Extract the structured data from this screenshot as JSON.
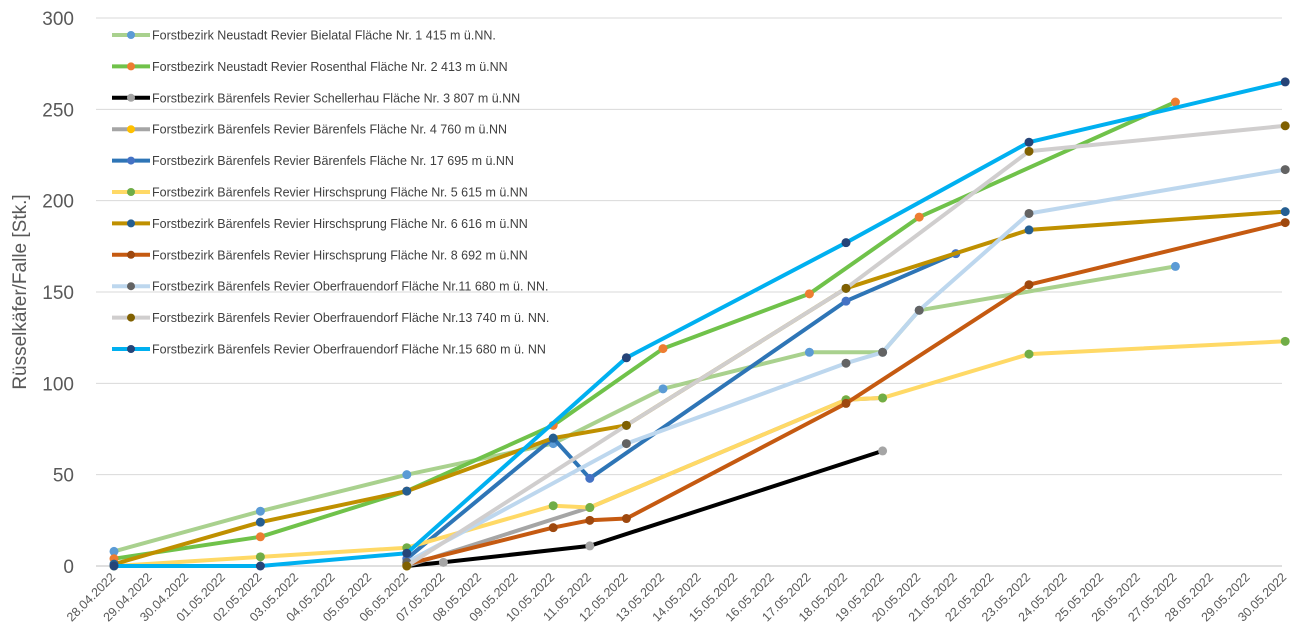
{
  "chart_data": {
    "type": "line",
    "title": "",
    "xlabel": "",
    "ylabel": "Rüsselkäfer/Falle [Stk.]",
    "ylim": [
      0,
      300
    ],
    "yticks": [
      0,
      50,
      100,
      150,
      200,
      250,
      300
    ],
    "grid": "horizontal",
    "legend_position": "top-left",
    "categories": [
      "28.04.2022",
      "29.04.2022",
      "30.04.2022",
      "01.05.2022",
      "02.05.2022",
      "03.05.2022",
      "04.05.2022",
      "05.05.2022",
      "06.05.2022",
      "07.05.2022",
      "08.05.2022",
      "09.05.2022",
      "10.05.2022",
      "11.05.2022",
      "12.05.2022",
      "13.05.2022",
      "14.05.2022",
      "15.05.2022",
      "16.05.2022",
      "17.05.2022",
      "18.05.2022",
      "19.05.2022",
      "20.05.2022",
      "21.05.2022",
      "22.05.2022",
      "23.05.2022",
      "24.05.2022",
      "25.05.2022",
      "26.05.2022",
      "27.05.2022",
      "28.05.2022",
      "29.05.2022",
      "30.05.2022"
    ],
    "series": [
      {
        "name": "Forstbezirk Neustadt Revier Bielatal Fläche Nr. 1 415 m ü.NN.",
        "color": "#a9d18e",
        "marker": "#5b9bd5",
        "points": [
          [
            0,
            8
          ],
          [
            4,
            30
          ],
          [
            8,
            50
          ],
          [
            12,
            67
          ],
          [
            15,
            97
          ],
          [
            19,
            117
          ],
          [
            21,
            117
          ],
          [
            22,
            140
          ],
          [
            29,
            164
          ]
        ]
      },
      {
        "name": "Forstbezirk Neustadt Revier Rosenthal Fläche Nr. 2 413 m ü.NN",
        "color": "#70c24a",
        "marker": "#ed7d31",
        "points": [
          [
            0,
            4
          ],
          [
            4,
            16
          ],
          [
            8,
            41
          ],
          [
            12,
            77
          ],
          [
            15,
            119
          ],
          [
            19,
            149
          ],
          [
            22,
            191
          ],
          [
            29,
            254
          ]
        ]
      },
      {
        "name": "Forstbezirk Bärenfels Revier Schellerhau Fläche Nr. 3 807 m ü.NN",
        "color": "#000000",
        "marker": "#a5a5a5",
        "points": [
          [
            8,
            0
          ],
          [
            9,
            2
          ],
          [
            13,
            11
          ],
          [
            21,
            63
          ]
        ]
      },
      {
        "name": "Forstbezirk Bärenfels Revier Bärenfels Fläche Nr. 4 760 m ü.NN",
        "color": "#a5a5a5",
        "marker": "#ffc000",
        "points": [
          [
            8,
            0
          ],
          [
            13,
            32
          ],
          [
            20,
            91
          ],
          [
            21,
            92
          ]
        ]
      },
      {
        "name": "Forstbezirk Bärenfels Revier Bärenfels Fläche Nr. 17 695  m ü.NN",
        "color": "#2e75b6",
        "marker": "#4472c4",
        "points": [
          [
            8,
            4
          ],
          [
            12,
            70
          ],
          [
            13,
            48
          ],
          [
            20,
            145
          ],
          [
            23,
            171
          ]
        ]
      },
      {
        "name": "Forstbezirk Bärenfels Revier Hirschsprung Fläche Nr. 5 615 m ü.NN",
        "color": "#ffd966",
        "marker": "#70ad47",
        "points": [
          [
            0,
            0
          ],
          [
            4,
            5
          ],
          [
            8,
            10
          ],
          [
            12,
            33
          ],
          [
            13,
            32
          ],
          [
            20,
            91
          ],
          [
            21,
            92
          ],
          [
            25,
            116
          ],
          [
            32,
            123
          ]
        ]
      },
      {
        "name": "Forstbezirk Bärenfels Revier Hirschsprung Fläche Nr. 6 616 m ü.NN",
        "color": "#bf9000",
        "marker": "#255e91",
        "points": [
          [
            0,
            1
          ],
          [
            4,
            24
          ],
          [
            8,
            41
          ],
          [
            12,
            70
          ],
          [
            14,
            77
          ],
          [
            20,
            152
          ],
          [
            25,
            184
          ],
          [
            32,
            194
          ]
        ]
      },
      {
        "name": "Forstbezirk Bärenfels Revier Hirschsprung Fläche Nr. 8 692 m ü.NN",
        "color": "#c55a11",
        "marker": "#9e480e",
        "points": [
          [
            8,
            1
          ],
          [
            12,
            21
          ],
          [
            13,
            25
          ],
          [
            14,
            26
          ],
          [
            20,
            89
          ],
          [
            25,
            154
          ],
          [
            32,
            188
          ]
        ]
      },
      {
        "name": "Forstbezirk Bärenfels Revier Oberfrauendorf Fläche Nr.11 680 m ü. NN.",
        "color": "#bdd7ee",
        "marker": "#636363",
        "points": [
          [
            8,
            2
          ],
          [
            14,
            67
          ],
          [
            20,
            111
          ],
          [
            21,
            117
          ],
          [
            22,
            140
          ],
          [
            25,
            193
          ],
          [
            32,
            217
          ]
        ]
      },
      {
        "name": "Forstbezirk Bärenfels Revier Oberfrauendorf Fläche Nr.13 740 m ü. NN.",
        "color": "#d0cece",
        "marker": "#806000",
        "points": [
          [
            8,
            0
          ],
          [
            14,
            77
          ],
          [
            20,
            152
          ],
          [
            25,
            227
          ],
          [
            32,
            241
          ]
        ]
      },
      {
        "name": "Forstbezirk Bärenfels Revier Oberfrauendorf Fläche Nr.15 680 m ü. NN",
        "color": "#00b0f0",
        "marker": "#264478",
        "points": [
          [
            0,
            0
          ],
          [
            4,
            0
          ],
          [
            8,
            7
          ],
          [
            14,
            114
          ],
          [
            20,
            177
          ],
          [
            25,
            232
          ],
          [
            32,
            265
          ]
        ]
      }
    ]
  }
}
